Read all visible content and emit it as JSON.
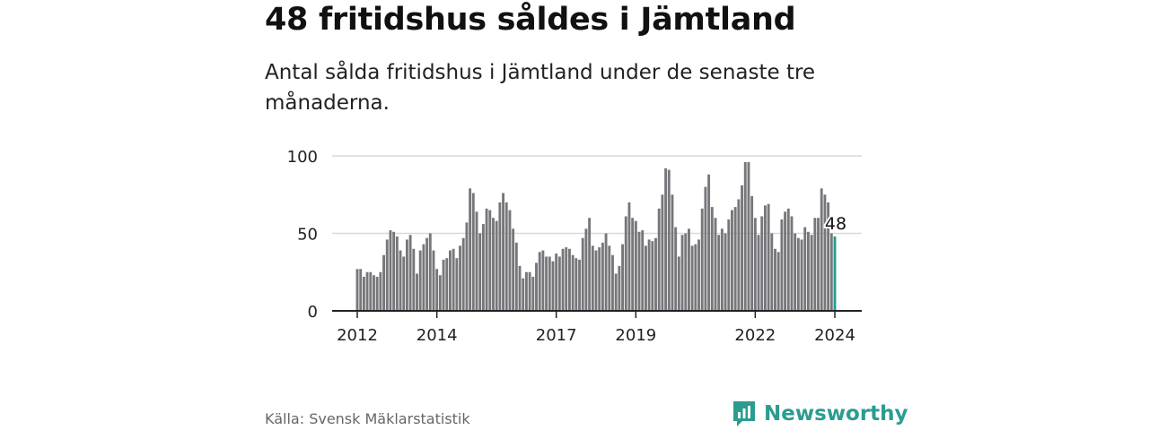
{
  "header": {
    "title": "48 fritidshus såldes i Jämtland",
    "subtitle": "Antal sålda fritidshus i Jämtland under de senaste tre månaderna."
  },
  "footer": {
    "source": "Källa: Svensk Mäklarstatistik",
    "logo": "Newsworthy"
  },
  "colors": {
    "bar": "#77767b",
    "highlight": "#1f9e8e",
    "grid": "#d9d9d9",
    "axis": "#222222",
    "brand": "#2a9d8f"
  },
  "chart_data": {
    "type": "bar",
    "title": "48 fritidshus såldes i Jämtland",
    "xlabel": "",
    "ylabel": "",
    "ylim": [
      0,
      100
    ],
    "yticks": [
      0,
      50,
      100
    ],
    "xticks": [
      {
        "index": 0,
        "label": "2012"
      },
      {
        "index": 24,
        "label": "2014"
      },
      {
        "index": 60,
        "label": "2017"
      },
      {
        "index": 84,
        "label": "2019"
      },
      {
        "index": 120,
        "label": "2022"
      },
      {
        "index": 144,
        "label": "2024"
      }
    ],
    "grid": true,
    "values": [
      27,
      27,
      22,
      25,
      25,
      23,
      22,
      25,
      36,
      46,
      52,
      51,
      48,
      39,
      35,
      46,
      49,
      40,
      24,
      39,
      43,
      47,
      50,
      39,
      27,
      23,
      33,
      34,
      39,
      40,
      34,
      42,
      47,
      57,
      79,
      76,
      64,
      50,
      56,
      66,
      65,
      60,
      58,
      70,
      76,
      70,
      65,
      53,
      44,
      29,
      21,
      25,
      25,
      22,
      31,
      38,
      39,
      35,
      35,
      32,
      37,
      35,
      40,
      41,
      40,
      36,
      34,
      33,
      47,
      53,
      60,
      42,
      39,
      41,
      44,
      50,
      42,
      36,
      24,
      29,
      43,
      61,
      70,
      60,
      58,
      51,
      52,
      42,
      46,
      45,
      47,
      66,
      75,
      92,
      91,
      75,
      54,
      35,
      49,
      50,
      53,
      42,
      43,
      46,
      66,
      80,
      88,
      67,
      60,
      49,
      53,
      50,
      59,
      65,
      67,
      72,
      81,
      96,
      96,
      74,
      60,
      49,
      61,
      68,
      69,
      50,
      40,
      38,
      59,
      64,
      66,
      61,
      50,
      47,
      46,
      54,
      51,
      49,
      60,
      60,
      79,
      75,
      70,
      50,
      48
    ],
    "highlight_label": "48"
  }
}
